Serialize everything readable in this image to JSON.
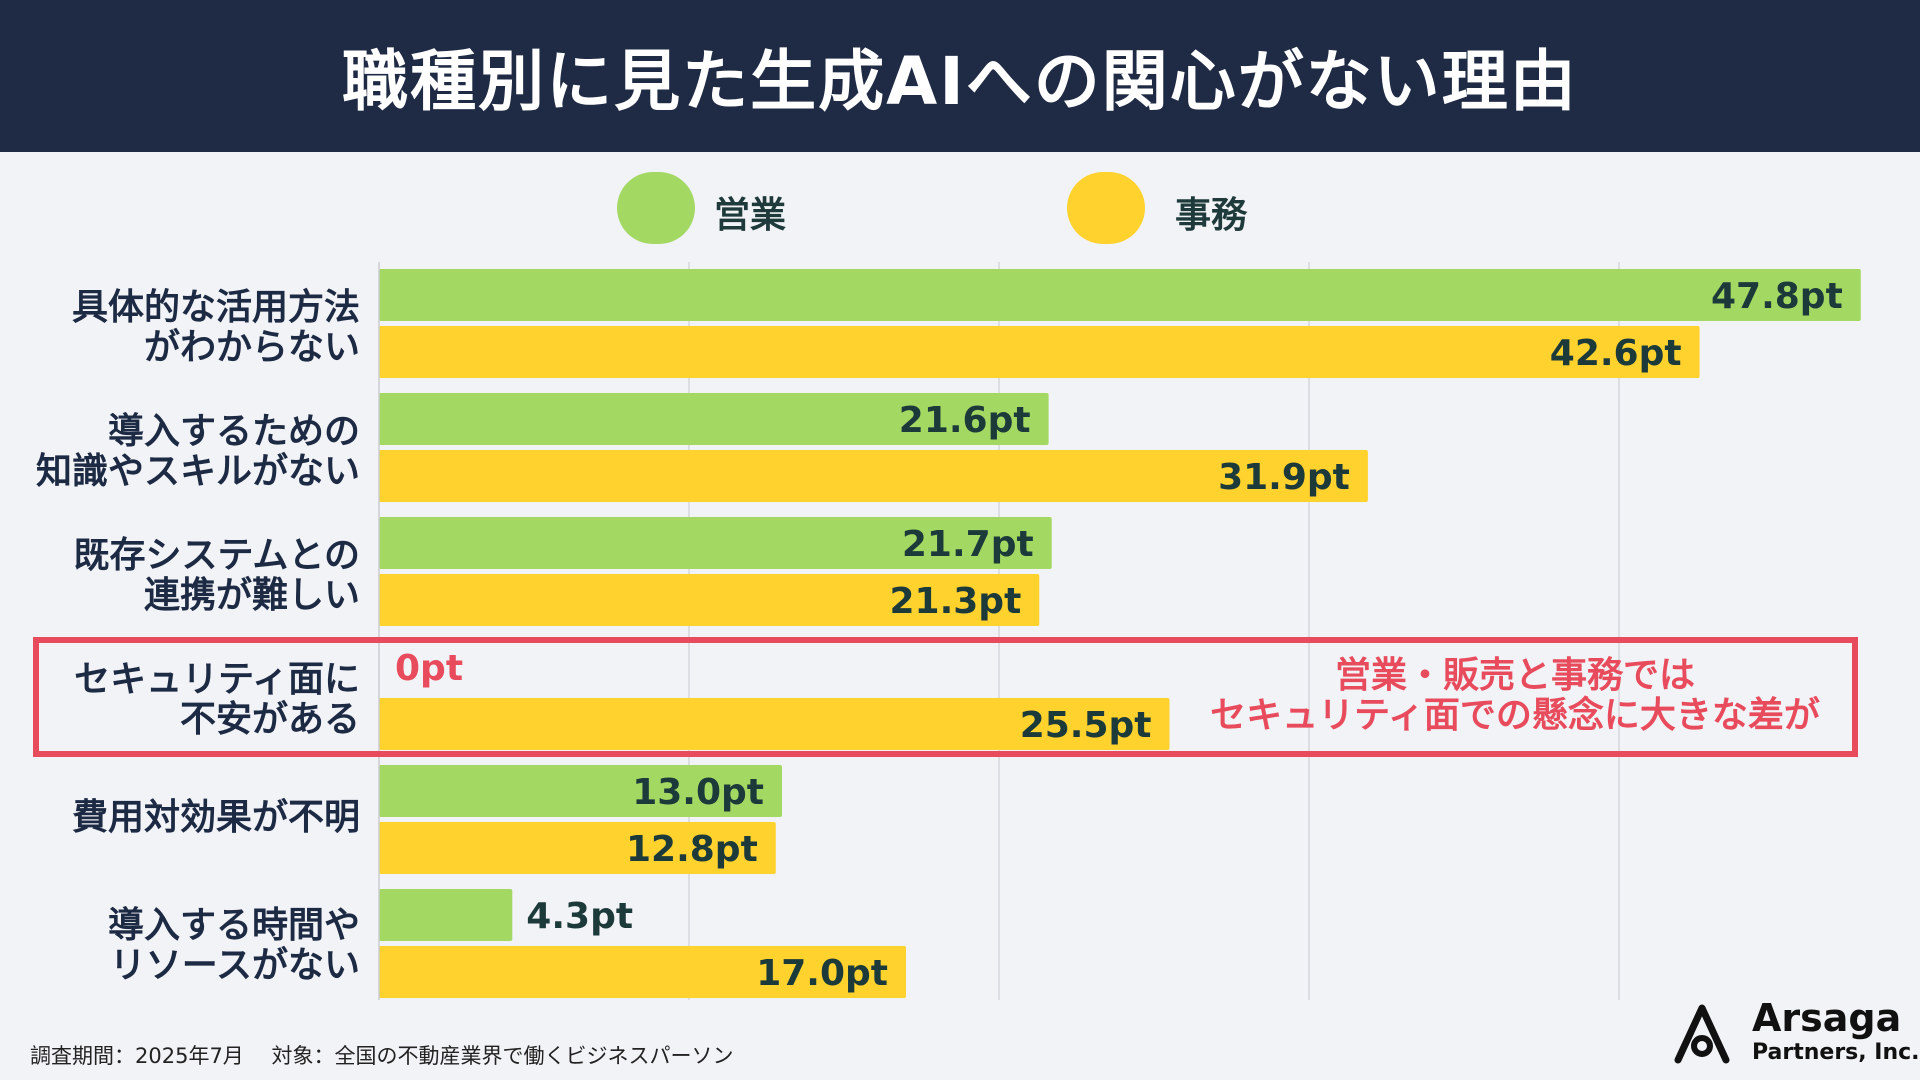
{
  "header": {
    "title": "職種別に見た生成AIへの関心がない理由"
  },
  "legend": [
    {
      "name": "営業",
      "color": "#a3d863"
    },
    {
      "name": "事務",
      "color": "#ffd22e"
    }
  ],
  "categories": [
    {
      "lines": [
        "具体的な活用方法",
        "がわからない"
      ]
    },
    {
      "lines": [
        "導入するための",
        "知識やスキルがない"
      ]
    },
    {
      "lines": [
        "既存システムとの",
        "連携が難しい"
      ]
    },
    {
      "lines": [
        "セキュリティ面に",
        "不安がある"
      ]
    },
    {
      "lines": [
        "費用対効果が不明"
      ]
    },
    {
      "lines": [
        "導入する時間や",
        "リソースがない"
      ]
    }
  ],
  "annotation": {
    "lines": [
      "営業・販売と事務では",
      "セキュリティ面での懸念に大きな差が"
    ],
    "color": "#e84c5c"
  },
  "chart_data": {
    "type": "bar",
    "orientation": "horizontal",
    "title": "職種別に見た生成AIへの関心がない理由",
    "categories": [
      "具体的な活用方法がわからない",
      "導入するための知識やスキルがない",
      "既存システムとの連携が難しい",
      "セキュリティ面に不安がある",
      "費用対効果が不明",
      "導入する時間やリソースがない"
    ],
    "series": [
      {
        "name": "営業",
        "color": "#a3d863",
        "values": [
          47.8,
          21.6,
          21.7,
          0,
          13.0,
          4.3
        ],
        "labels": [
          "47.8pt",
          "21.6pt",
          "21.7pt",
          "0pt",
          "13.0pt",
          "4.3pt"
        ]
      },
      {
        "name": "事務",
        "color": "#ffd22e",
        "values": [
          42.6,
          31.9,
          21.3,
          25.5,
          12.8,
          17.0
        ],
        "labels": [
          "42.6pt",
          "31.9pt",
          "21.3pt",
          "25.5pt",
          "12.8pt",
          "17.0pt"
        ]
      }
    ],
    "xlim": [
      0,
      50
    ],
    "grid": true,
    "legend_position": "top-center",
    "highlight_category_index": 3
  },
  "footer": {
    "note": "調査期間：2025年7月　 対象：全国の不動産業界で働くビジネスパーソン",
    "brand_name": "Arsaga",
    "brand_sub": "Partners, Inc."
  }
}
